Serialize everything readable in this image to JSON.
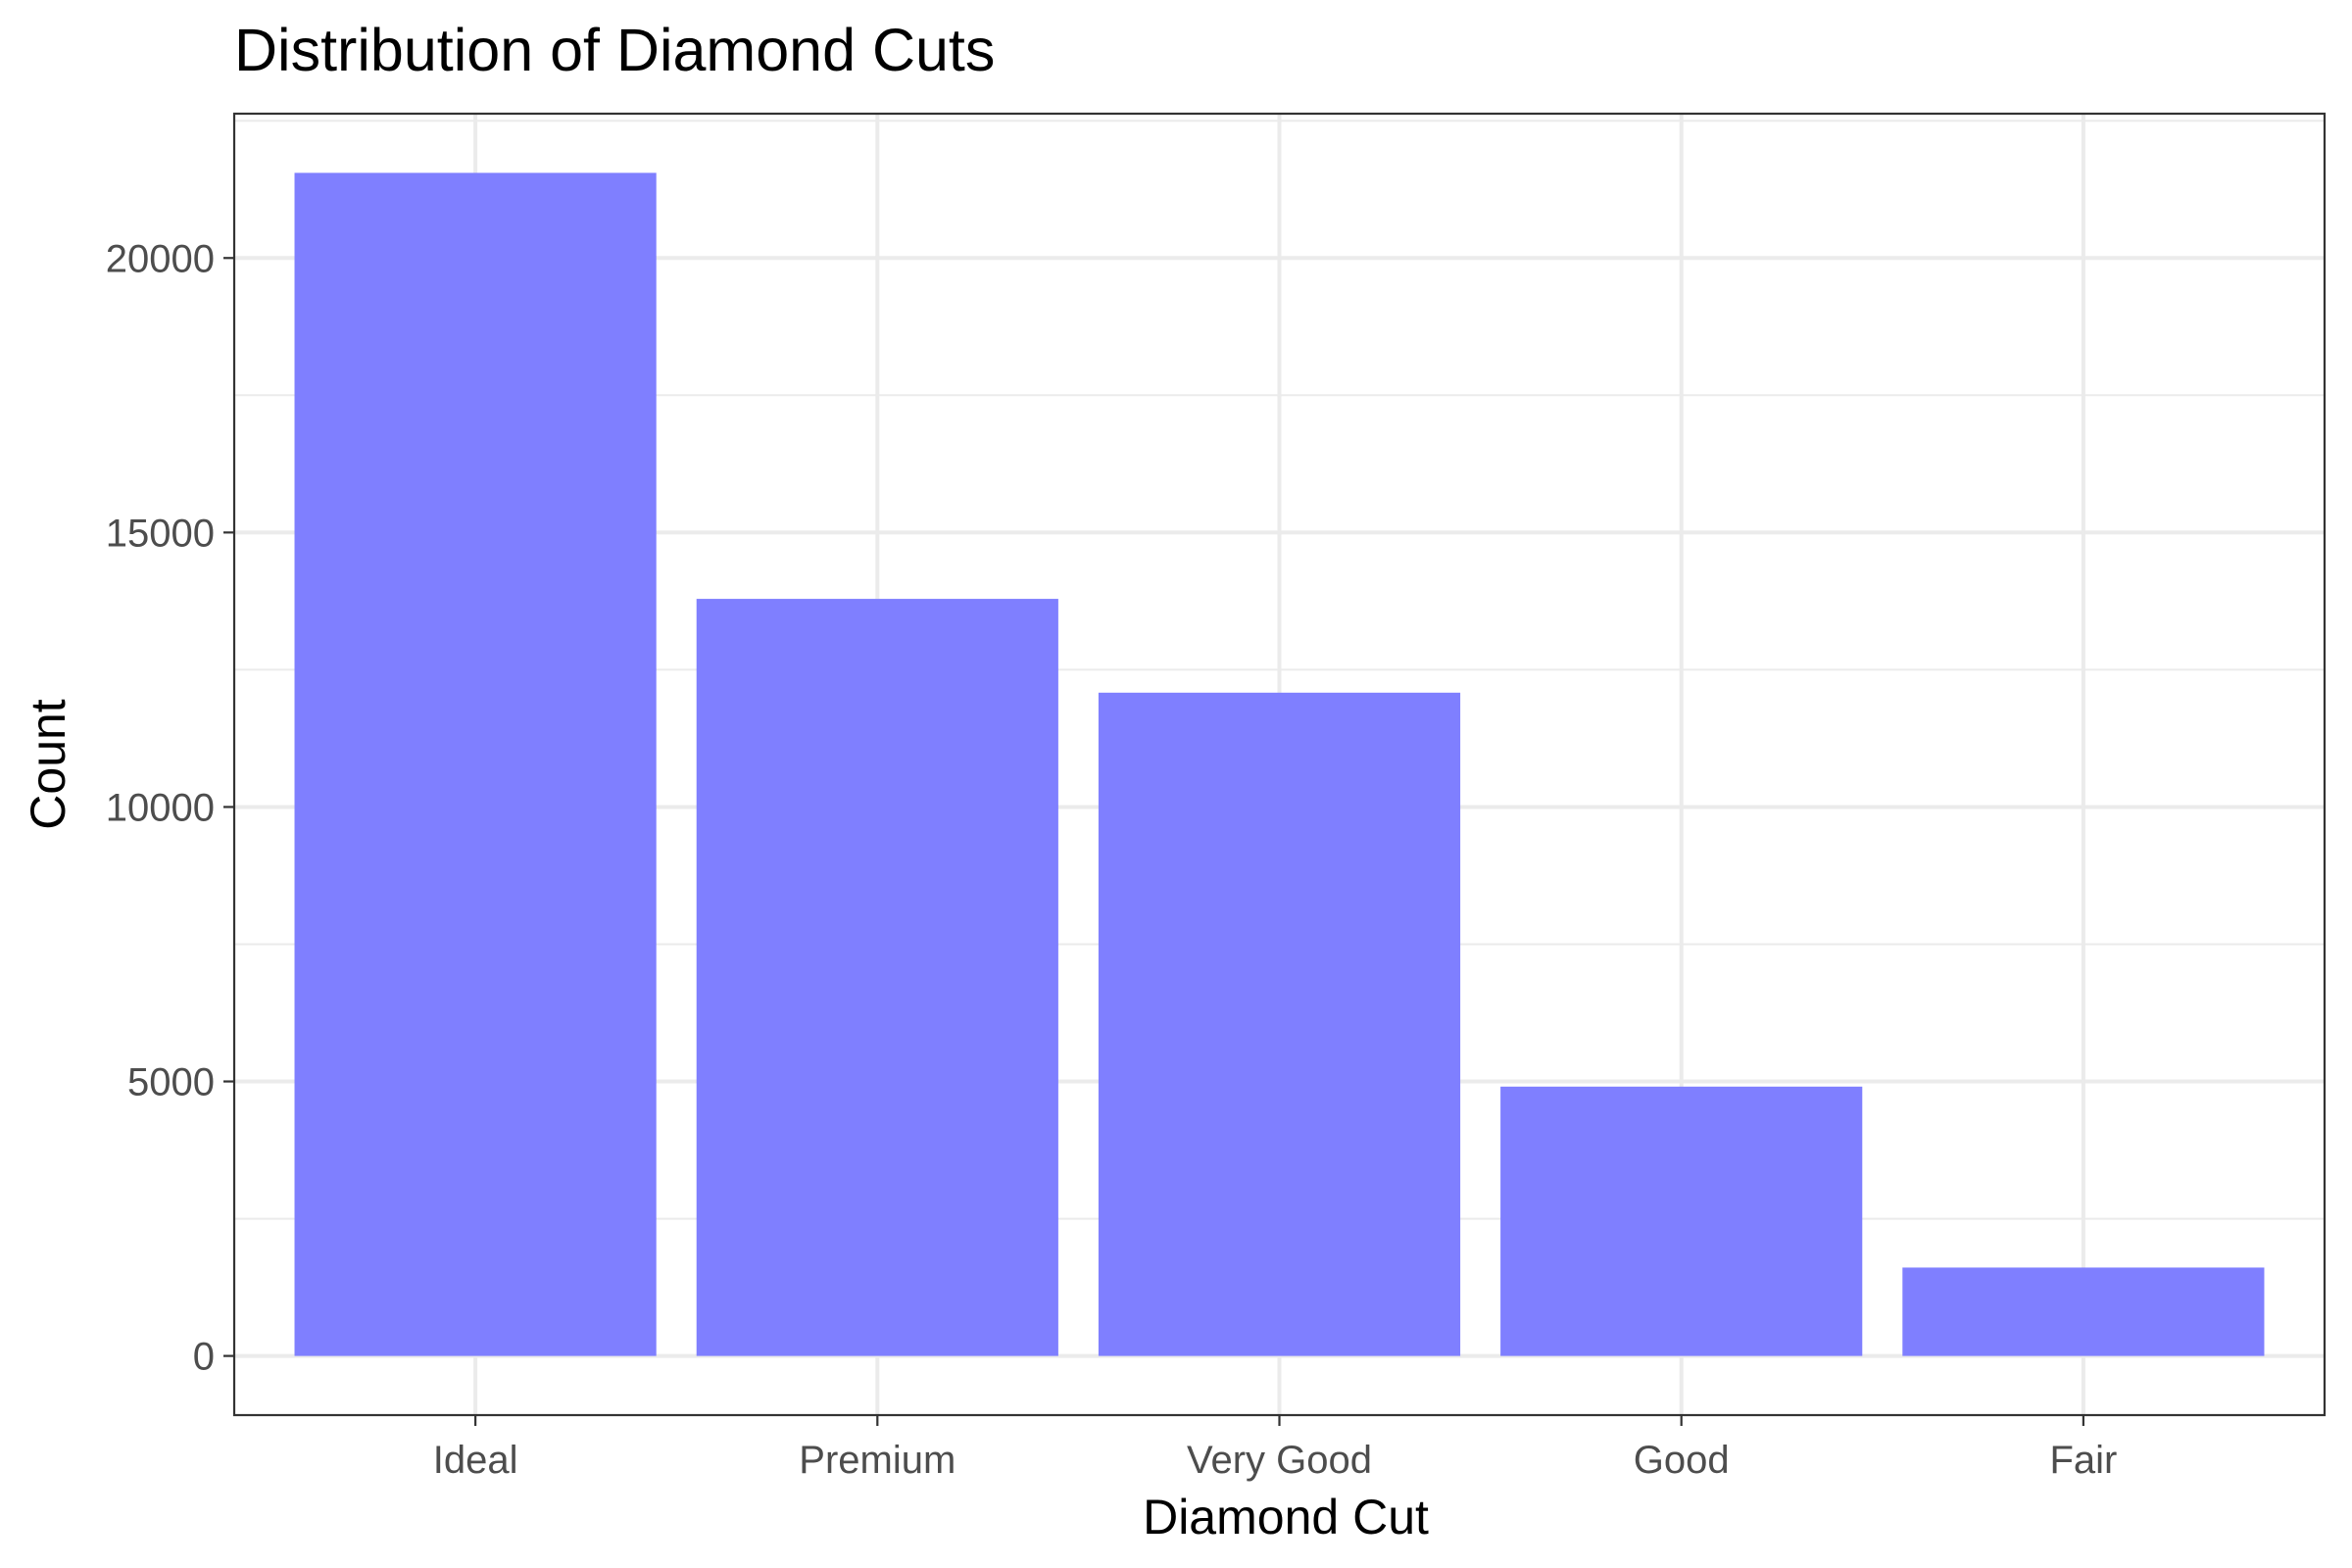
{
  "chart_data": {
    "type": "bar",
    "title": "Distribution of Diamond Cuts",
    "xlabel": "Diamond Cut",
    "ylabel": "Count",
    "categories": [
      "Ideal",
      "Premium",
      "Very Good",
      "Good",
      "Fair"
    ],
    "values": [
      21551,
      13791,
      12082,
      4906,
      1610
    ],
    "ylim": [
      -1078,
      22629
    ],
    "yticks": [
      0,
      5000,
      10000,
      15000,
      20000
    ],
    "ytick_labels": [
      "0",
      "5000",
      "10000",
      "15000",
      "20000"
    ],
    "grid": true,
    "legend": "none",
    "bar_color": "#7f7fff"
  }
}
